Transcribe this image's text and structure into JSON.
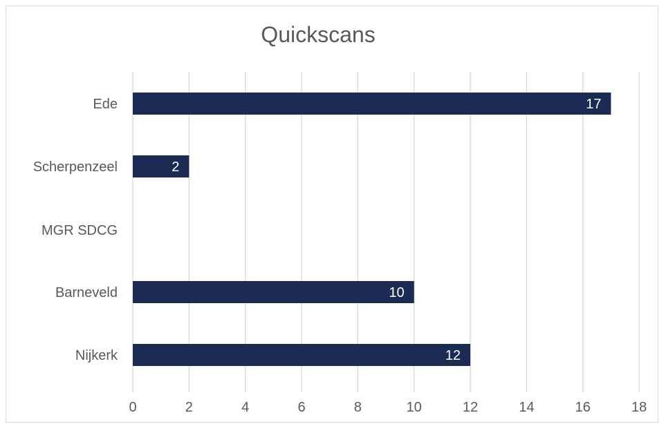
{
  "chart_data": {
    "type": "bar",
    "orientation": "horizontal",
    "title": "Quickscans",
    "xlabel": "",
    "ylabel": "",
    "categories": [
      "Ede",
      "Scherpenzeel",
      "MGR SDCG",
      "Barneveld",
      "Nijkerk"
    ],
    "values": [
      17,
      2,
      null,
      10,
      12
    ],
    "data_labels": [
      "17",
      "2",
      "",
      "10",
      "12"
    ],
    "xlim": [
      0,
      18
    ],
    "xticks": [
      0,
      2,
      4,
      6,
      8,
      10,
      12,
      14,
      16,
      18
    ],
    "grid": "vertical",
    "legend": "none",
    "bar_color": "#1c2b54",
    "label_color": "#ffffff",
    "grid_color": "#d9d9d9",
    "text_color": "#595959"
  }
}
